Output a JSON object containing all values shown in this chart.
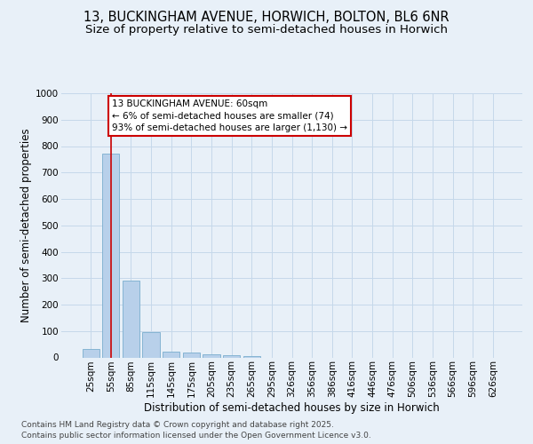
{
  "title_line1": "13, BUCKINGHAM AVENUE, HORWICH, BOLTON, BL6 6NR",
  "title_line2": "Size of property relative to semi-detached houses in Horwich",
  "xlabel": "Distribution of semi-detached houses by size in Horwich",
  "ylabel": "Number of semi-detached properties",
  "categories": [
    "25sqm",
    "55sqm",
    "85sqm",
    "115sqm",
    "145sqm",
    "175sqm",
    "205sqm",
    "235sqm",
    "265sqm",
    "295sqm",
    "326sqm",
    "356sqm",
    "386sqm",
    "416sqm",
    "446sqm",
    "476sqm",
    "506sqm",
    "536sqm",
    "566sqm",
    "596sqm",
    "626sqm"
  ],
  "values": [
    33,
    770,
    290,
    95,
    22,
    17,
    12,
    8,
    4,
    0,
    0,
    0,
    0,
    0,
    0,
    0,
    0,
    0,
    0,
    0,
    0
  ],
  "bar_color": "#b8d0ea",
  "bar_edge_color": "#7aadce",
  "grid_color": "#c5d8ea",
  "background_color": "#e8f0f8",
  "plot_bg_color": "#e8f0f8",
  "annotation_text": "13 BUCKINGHAM AVENUE: 60sqm\n← 6% of semi-detached houses are smaller (74)\n93% of semi-detached houses are larger (1,130) →",
  "annotation_box_color": "#ffffff",
  "annotation_edge_color": "#cc0000",
  "property_line_x": 1,
  "property_line_color": "#cc0000",
  "ylim": [
    0,
    1000
  ],
  "yticks": [
    0,
    100,
    200,
    300,
    400,
    500,
    600,
    700,
    800,
    900,
    1000
  ],
  "footnote": "Contains HM Land Registry data © Crown copyright and database right 2025.\nContains public sector information licensed under the Open Government Licence v3.0.",
  "title_fontsize": 10.5,
  "subtitle_fontsize": 9.5,
  "axis_label_fontsize": 8.5,
  "tick_fontsize": 7.5,
  "annotation_fontsize": 7.5,
  "footnote_fontsize": 6.5
}
